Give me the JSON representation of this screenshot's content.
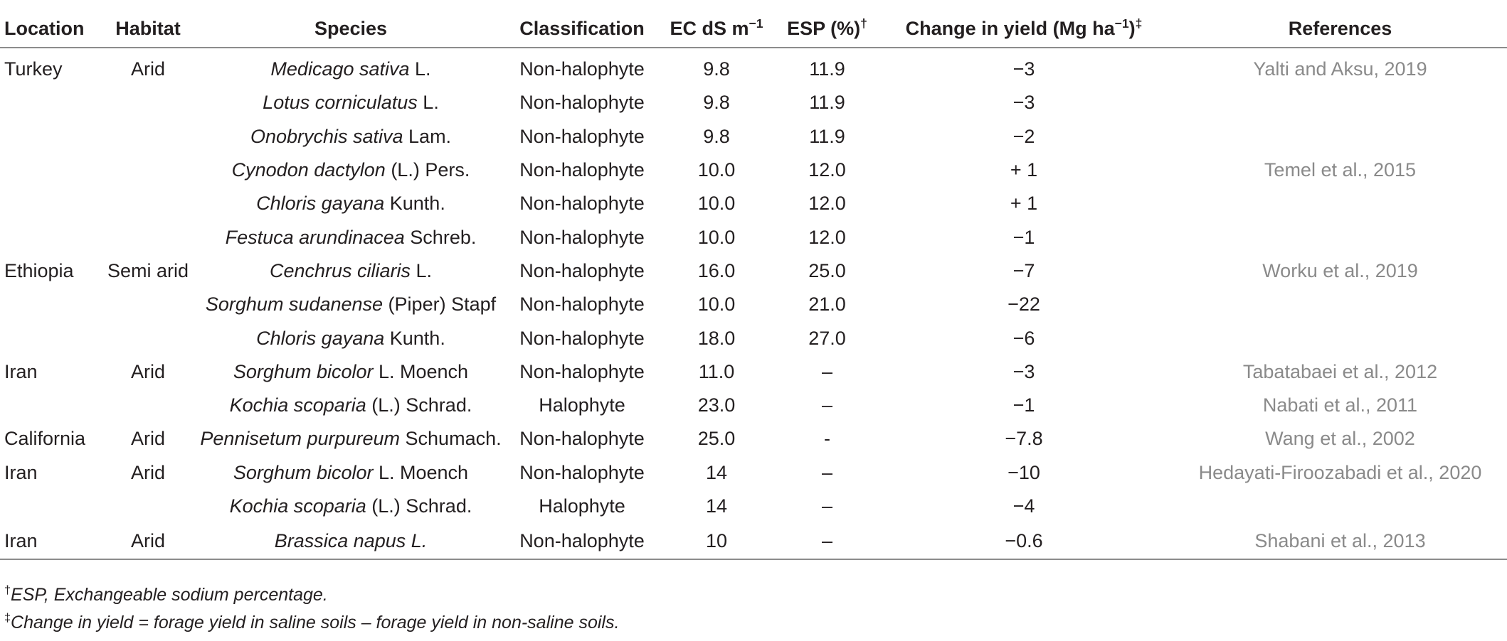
{
  "headers": {
    "location": "Location",
    "habitat": "Habitat",
    "species": "Species",
    "classification": "Classification",
    "ec": "EC dS m",
    "ec_sup": "−1",
    "esp": "ESP (%)",
    "esp_sup": "†",
    "change": "Change in yield (Mg ha",
    "change_sup": "−1",
    "change_close": ")",
    "change_sup2": "‡",
    "references": "References"
  },
  "rows": [
    {
      "location": "Turkey",
      "habitat": "Arid",
      "species_italic": "Medicago sativa",
      "species_rest": " L.",
      "classification": "Non-halophyte",
      "ec": "9.8",
      "esp": "11.9",
      "change": "−3",
      "reference": "Yalti and Aksu, 2019"
    },
    {
      "location": "",
      "habitat": "",
      "species_italic": "Lotus corniculatus",
      "species_rest": " L.",
      "classification": "Non-halophyte",
      "ec": "9.8",
      "esp": "11.9",
      "change": "−3",
      "reference": ""
    },
    {
      "location": "",
      "habitat": "",
      "species_italic": "Onobrychis sativa",
      "species_rest": " Lam.",
      "classification": "Non-halophyte",
      "ec": "9.8",
      "esp": "11.9",
      "change": "−2",
      "reference": ""
    },
    {
      "location": "",
      "habitat": "",
      "species_italic": "Cynodon dactylon",
      "species_rest": " (L.) Pers.",
      "classification": "Non-halophyte",
      "ec": "10.0",
      "esp": "12.0",
      "change": "+ 1",
      "reference": "Temel et al., 2015"
    },
    {
      "location": "",
      "habitat": "",
      "species_italic": "Chloris gayana",
      "species_rest": " Kunth.",
      "classification": "Non-halophyte",
      "ec": "10.0",
      "esp": "12.0",
      "change": "+ 1",
      "reference": ""
    },
    {
      "location": "",
      "habitat": "",
      "species_italic": "Festuca arundinacea",
      "species_rest": " Schreb.",
      "classification": "Non-halophyte",
      "ec": "10.0",
      "esp": "12.0",
      "change": "−1",
      "reference": ""
    },
    {
      "location": "Ethiopia",
      "habitat": "Semi arid",
      "species_italic": "Cenchrus ciliaris",
      "species_rest": " L.",
      "classification": "Non-halophyte",
      "ec": "16.0",
      "esp": "25.0",
      "change": "−7",
      "reference": "Worku et al., 2019"
    },
    {
      "location": "",
      "habitat": "",
      "species_italic": "Sorghum sudanense",
      "species_rest": " (Piper) Stapf",
      "classification": "Non-halophyte",
      "ec": "10.0",
      "esp": "21.0",
      "change": "−22",
      "reference": ""
    },
    {
      "location": "",
      "habitat": "",
      "species_italic": "Chloris gayana",
      "species_rest": " Kunth.",
      "classification": "Non-halophyte",
      "ec": "18.0",
      "esp": "27.0",
      "change": "−6",
      "reference": ""
    },
    {
      "location": "Iran",
      "habitat": "Arid",
      "species_italic": "Sorghum bicolor",
      "species_rest": " L. Moench",
      "classification": "Non-halophyte",
      "ec": "11.0",
      "esp": "–",
      "change": "−3",
      "reference": "Tabatabaei et al., 2012"
    },
    {
      "location": "",
      "habitat": "",
      "species_italic": "Kochia scoparia",
      "species_rest": " (L.) Schrad.",
      "classification": "Halophyte",
      "ec": "23.0",
      "esp": "–",
      "change": "−1",
      "reference": "Nabati et al., 2011"
    },
    {
      "location": "California",
      "habitat": "Arid",
      "species_italic": "Pennisetum purpureum",
      "species_rest": " Schumach.",
      "classification": "Non-halophyte",
      "ec": "25.0",
      "esp": "-",
      "change": "−7.8",
      "reference": "Wang et al., 2002"
    },
    {
      "location": "Iran",
      "habitat": "Arid",
      "species_italic": "Sorghum bicolor",
      "species_rest": " L. Moench",
      "classification": "Non-halophyte",
      "ec": "14",
      "esp": "–",
      "change": "−10",
      "reference": "Hedayati-Firoozabadi et al., 2020"
    },
    {
      "location": "",
      "habitat": "",
      "species_italic": "Kochia scoparia",
      "species_rest": " (L.) Schrad.",
      "classification": "Halophyte",
      "ec": "14",
      "esp": "–",
      "change": "−4",
      "reference": ""
    },
    {
      "location": "Iran",
      "habitat": "Arid",
      "species_italic": "Brassica napus L.",
      "species_rest": "",
      "classification": "Non-halophyte",
      "ec": "10",
      "esp": "–",
      "change": "−0.6",
      "reference": "Shabani et al., 2013"
    }
  ],
  "footnotes": [
    {
      "mark": "†",
      "text": "ESP, Exchangeable sodium percentage."
    },
    {
      "mark": "‡",
      "text": "Change in yield = forage yield in saline soils – forage yield in non-saline soils."
    }
  ]
}
